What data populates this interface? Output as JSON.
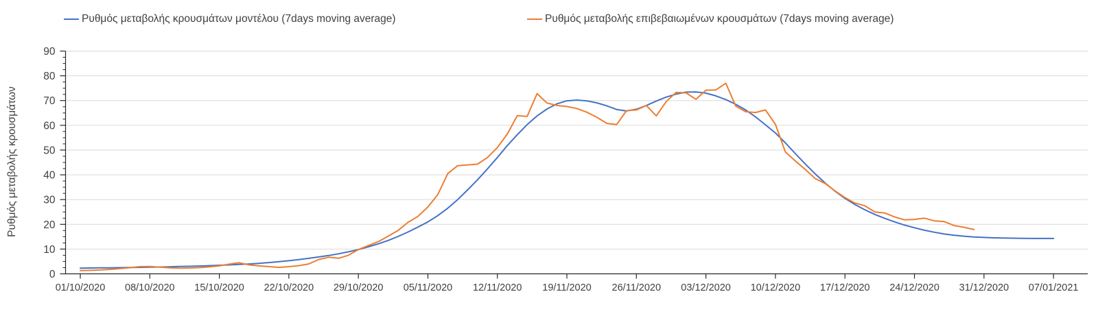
{
  "legend": {
    "items": [
      {
        "label": "Ρυθμός μεταβολής κρουσμάτων μοντέλου (7days moving average)",
        "color": "#4472C4"
      },
      {
        "label": "Ρυθμός μεταβολής επιβεβαιωμένων κρουσμάτων (7days moving average)",
        "color": "#ED7D31"
      }
    ]
  },
  "chart_data": {
    "type": "line",
    "title": "",
    "xlabel": "",
    "ylabel": "Ρυθμός μεταβολής κρουσμάτων",
    "ylim": [
      0,
      90
    ],
    "y_tick_interval": 10,
    "y_minor_tick_interval": 2.5,
    "grid": "horizontal-major",
    "legend_position": "top",
    "x_tick_labels": [
      "01/10/2020",
      "08/10/2020",
      "15/10/2020",
      "22/10/2020",
      "29/10/2020",
      "05/11/2020",
      "12/11/2020",
      "19/11/2020",
      "26/11/2020",
      "03/12/2020",
      "10/12/2020",
      "17/12/2020",
      "24/12/2020",
      "31/12/2020",
      "07/01/2021"
    ],
    "x_days_per_tick": 7,
    "axis_color": "#262626",
    "grid_color": "#D9D9D9",
    "tick_label_color": "#404040",
    "series": [
      {
        "name": "Ρυθμός μεταβολής κρουσμάτων μοντέλου (7days moving average)",
        "color": "#4472C4",
        "start_day": 0,
        "values": [
          2.3,
          2.35,
          2.4,
          2.45,
          2.5,
          2.55,
          2.6,
          2.7,
          2.75,
          2.85,
          2.95,
          3.05,
          3.15,
          3.3,
          3.45,
          3.6,
          3.8,
          4.0,
          4.25,
          4.55,
          4.9,
          5.3,
          5.75,
          6.25,
          6.8,
          7.4,
          8.1,
          8.9,
          9.8,
          10.9,
          12.1,
          13.5,
          15.1,
          16.9,
          18.9,
          21.0,
          23.5,
          26.5,
          30.0,
          33.9,
          38.0,
          42.4,
          47.0,
          51.8,
          56.2,
          60.3,
          63.8,
          66.6,
          68.7,
          69.9,
          70.2,
          69.9,
          69.1,
          67.9,
          66.4,
          65.8,
          66.5,
          68.0,
          69.8,
          71.4,
          72.6,
          73.4,
          73.5,
          73.0,
          71.9,
          70.4,
          68.5,
          66.2,
          63.4,
          60.2,
          56.9,
          52.9,
          48.6,
          44.4,
          40.4,
          36.7,
          33.4,
          30.5,
          28.0,
          25.9,
          24.0,
          22.4,
          21.0,
          19.7,
          18.6,
          17.6,
          16.8,
          16.1,
          15.6,
          15.2,
          14.9,
          14.7,
          14.55,
          14.45,
          14.4,
          14.35,
          14.3,
          14.3,
          14.3
        ]
      },
      {
        "name": "Ρυθμός μεταβολής επιβεβαιωμένων κρουσμάτων (7days moving average)",
        "color": "#ED7D31",
        "start_day": 0,
        "values": [
          1.3,
          1.4,
          1.55,
          1.8,
          2.1,
          2.5,
          2.9,
          3.0,
          2.7,
          2.45,
          2.3,
          2.35,
          2.5,
          2.8,
          3.2,
          3.9,
          4.5,
          3.6,
          3.2,
          2.9,
          2.6,
          2.9,
          3.3,
          4.0,
          5.8,
          6.7,
          6.3,
          7.5,
          9.8,
          11.4,
          13.0,
          15.2,
          17.5,
          20.8,
          23.2,
          27.0,
          32.0,
          40.5,
          43.7,
          44.0,
          44.3,
          47.0,
          51.0,
          56.5,
          63.9,
          63.6,
          72.8,
          69.0,
          68.0,
          67.6,
          66.8,
          65.3,
          63.3,
          60.8,
          60.3,
          65.9,
          66.2,
          68.0,
          63.8,
          69.6,
          73.3,
          73.1,
          70.5,
          74.2,
          74.3,
          77.0,
          67.8,
          65.5,
          65.2,
          66.2,
          60.4,
          49.2,
          45.6,
          42.2,
          38.5,
          36.5,
          33.5,
          30.8,
          28.6,
          27.5,
          25.0,
          24.6,
          23.0,
          21.8,
          22.0,
          22.5,
          21.4,
          21.1,
          19.5,
          18.8,
          17.9
        ]
      }
    ]
  }
}
